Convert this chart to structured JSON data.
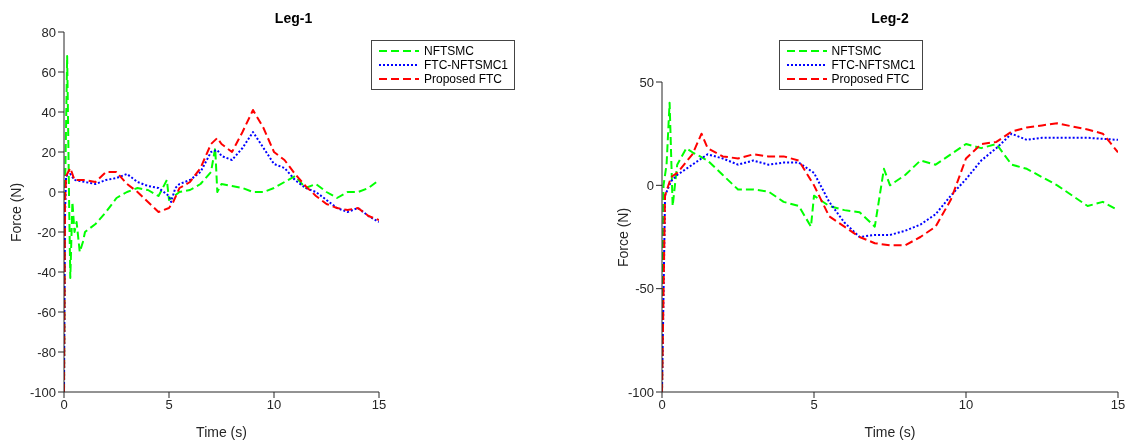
{
  "chart_data": [
    {
      "type": "line",
      "title": "Leg-1",
      "xlabel": "Time (s)",
      "ylabel": "Force (N)",
      "xlim": [
        0,
        15
      ],
      "xticks": [
        0,
        5,
        10,
        15
      ],
      "ylim": [
        -100,
        80
      ],
      "yticks": [
        -100,
        -80,
        -60,
        -40,
        -20,
        0,
        20,
        40,
        60,
        80
      ],
      "legend": "top right",
      "marker": "none",
      "series": [
        {
          "name": "NFTSMC",
          "color": "#00ff00",
          "line_style": "dashed",
          "x": [
            0,
            0.05,
            0.15,
            0.2,
            0.25,
            0.3,
            0.4,
            0.5,
            0.6,
            0.75,
            0.9,
            1,
            1.5,
            2,
            2.5,
            3,
            3.5,
            4,
            4.5,
            4.9,
            5,
            5.5,
            6,
            6.5,
            7,
            7.2,
            7.3,
            7.5,
            8,
            8.5,
            9,
            9.5,
            10,
            10.5,
            11,
            11.5,
            12,
            12.5,
            13,
            13.5,
            14,
            14.5,
            15
          ],
          "values": [
            -100,
            0,
            68,
            30,
            -10,
            -43,
            -5,
            -20,
            -15,
            -30,
            -25,
            -20,
            -16,
            -10,
            -3,
            0,
            2,
            1,
            -2,
            6,
            -4,
            0,
            1,
            4,
            10,
            22,
            0,
            4,
            3,
            2,
            0,
            0,
            2,
            5,
            8,
            2,
            4,
            0,
            -3,
            0,
            0,
            2,
            6
          ]
        },
        {
          "name": "FTC-NFTSMC1",
          "color": "#0000ff",
          "line_style": "dotted",
          "x": [
            0,
            0.05,
            0.1,
            0.3,
            0.5,
            1,
            1.5,
            2,
            2.5,
            3,
            3.5,
            4,
            4.5,
            5,
            5.1,
            5.3,
            5.5,
            6,
            6.5,
            7,
            7.3,
            7.5,
            8,
            8.5,
            9,
            9.5,
            10,
            10.5,
            11,
            11.5,
            12,
            12.5,
            13,
            13.5,
            14,
            14.5,
            15
          ],
          "values": [
            -100,
            -10,
            8,
            9,
            6,
            5,
            4,
            6,
            7,
            9,
            5,
            3,
            2,
            -2,
            -5,
            2,
            4,
            6,
            10,
            20,
            21,
            18,
            16,
            22,
            30,
            22,
            14,
            12,
            6,
            2,
            0,
            -4,
            -8,
            -10,
            -8,
            -12,
            -15
          ]
        },
        {
          "name": "Proposed FTC",
          "color": "#ff0000",
          "line_style": "dashed",
          "x": [
            0,
            0.05,
            0.1,
            0.3,
            0.5,
            1,
            1.5,
            2,
            2.5,
            3,
            3.5,
            4,
            4.5,
            5,
            5.2,
            5.5,
            6,
            6.5,
            7,
            7.3,
            7.5,
            8,
            8.5,
            9,
            9.5,
            10,
            10.5,
            11,
            11.5,
            12,
            12.5,
            13,
            13.5,
            14,
            14.5,
            15
          ],
          "values": [
            -100,
            -5,
            8,
            12,
            6,
            6,
            5,
            10,
            10,
            4,
            0,
            -5,
            -10,
            -8,
            -5,
            2,
            5,
            12,
            24,
            27,
            24,
            20,
            30,
            41,
            32,
            20,
            16,
            9,
            3,
            -2,
            -6,
            -8,
            -9,
            -8,
            -12,
            -14
          ]
        }
      ]
    },
    {
      "type": "line",
      "title": "Leg-2",
      "xlabel": "Time (s)",
      "ylabel": "Force (N)",
      "xlim": [
        0,
        15
      ],
      "xticks": [
        0,
        5,
        10,
        15
      ],
      "ylim": [
        -100,
        50
      ],
      "yticks": [
        -100,
        -50,
        0,
        50
      ],
      "legend": "top",
      "marker": "none",
      "series": [
        {
          "name": "NFTSMC",
          "color": "#00ff00",
          "line_style": "dashed",
          "x": [
            0,
            0.05,
            0.15,
            0.25,
            0.35,
            0.5,
            0.8,
            1,
            1.5,
            2,
            2.5,
            3,
            3.5,
            4,
            4.5,
            4.9,
            5,
            5.5,
            6,
            6.5,
            7,
            7.3,
            7.5,
            8,
            8.5,
            9,
            9.5,
            10,
            10.5,
            11,
            11.5,
            12,
            12.5,
            13,
            13.5,
            14,
            14.5,
            15
          ],
          "values": [
            -100,
            0,
            10,
            40,
            -10,
            10,
            18,
            16,
            12,
            5,
            -2,
            -2,
            -3,
            -8,
            -10,
            -20,
            -5,
            -10,
            -12,
            -13,
            -20,
            8,
            0,
            5,
            12,
            10,
            15,
            20,
            18,
            20,
            10,
            8,
            4,
            0,
            -5,
            -10,
            -8,
            -12
          ]
        },
        {
          "name": "FTC-NFTSMC1",
          "color": "#0000ff",
          "line_style": "dotted",
          "x": [
            0,
            0.1,
            0.3,
            0.5,
            1,
            1.5,
            2,
            2.5,
            3,
            3.5,
            4,
            4.5,
            5,
            5.5,
            6,
            6.5,
            7,
            7.5,
            8,
            8.5,
            9,
            9.5,
            10,
            10.5,
            11,
            11.5,
            12,
            12.5,
            13,
            14,
            15
          ],
          "values": [
            -100,
            -5,
            2,
            5,
            10,
            15,
            13,
            10,
            12,
            10,
            11,
            11,
            6,
            -8,
            -18,
            -25,
            -24,
            -24,
            -22,
            -19,
            -14,
            -5,
            3,
            12,
            18,
            25,
            22,
            23,
            23,
            23,
            22
          ]
        },
        {
          "name": "Proposed FTC",
          "color": "#ff0000",
          "line_style": "dashed",
          "x": [
            0,
            0.1,
            0.3,
            0.5,
            1,
            1.3,
            1.5,
            2,
            2.5,
            3,
            3.5,
            4,
            4.5,
            5,
            5.5,
            6,
            6.5,
            7,
            7.5,
            8,
            8.5,
            9,
            9.5,
            10,
            10.5,
            11,
            11.5,
            12,
            12.5,
            13,
            14,
            14.5,
            15
          ],
          "values": [
            -100,
            -5,
            4,
            6,
            15,
            25,
            18,
            14,
            13,
            15,
            14,
            14,
            12,
            0,
            -15,
            -20,
            -25,
            -28,
            -29,
            -29,
            -25,
            -20,
            -7,
            13,
            20,
            21,
            26,
            28,
            29,
            30,
            27,
            25,
            16
          ]
        }
      ]
    }
  ]
}
